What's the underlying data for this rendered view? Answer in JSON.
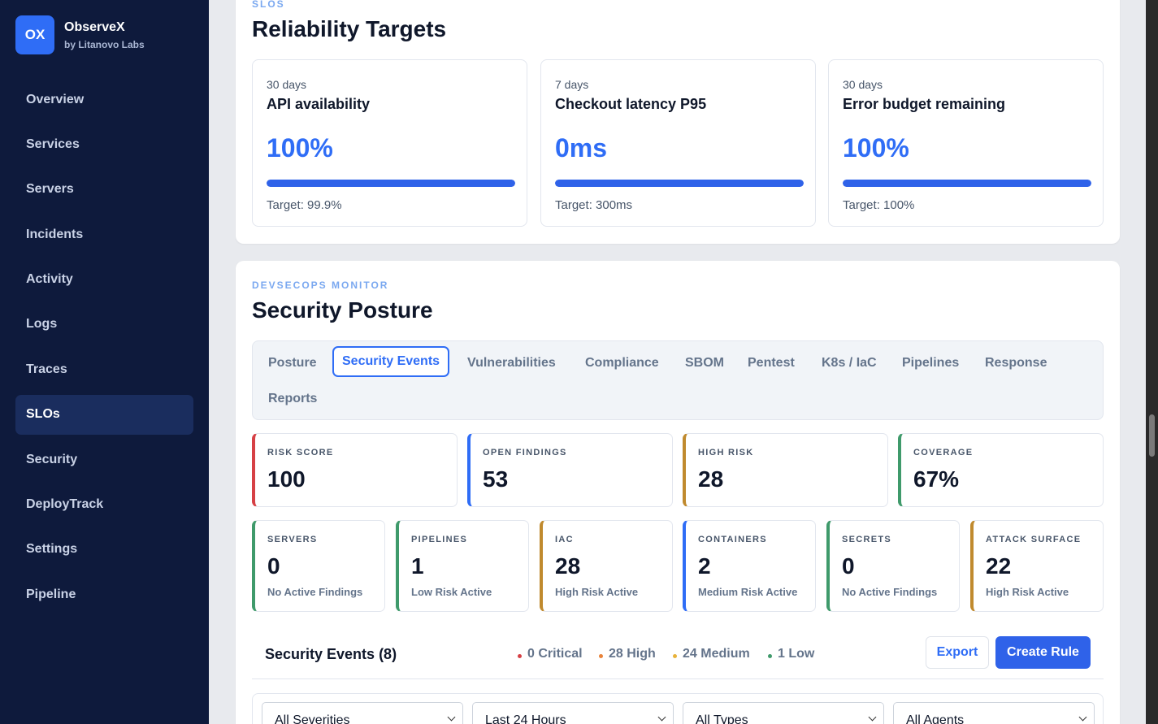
{
  "brand": {
    "logo": "OX",
    "name": "ObserveX",
    "sub": "by Litanovo Labs"
  },
  "sidebar": {
    "items": [
      {
        "label": "Overview"
      },
      {
        "label": "Services"
      },
      {
        "label": "Servers"
      },
      {
        "label": "Incidents"
      },
      {
        "label": "Activity"
      },
      {
        "label": "Logs"
      },
      {
        "label": "Traces"
      },
      {
        "label": "SLOs",
        "active": true
      },
      {
        "label": "Security"
      },
      {
        "label": "DeployTrack"
      },
      {
        "label": "Settings"
      },
      {
        "label": "Pipeline"
      }
    ]
  },
  "slos": {
    "eyebrow": "SLOS",
    "title": "Reliability Targets",
    "cards": [
      {
        "period": "30 days",
        "name": "API availability",
        "value": "100%",
        "progress": 1.0,
        "target": "Target: 99.9%"
      },
      {
        "period": "7 days",
        "name": "Checkout latency P95",
        "value": "0ms",
        "progress": 1.0,
        "target": "Target: 300ms"
      },
      {
        "period": "30 days",
        "name": "Error budget remaining",
        "value": "100%",
        "progress": 1.0,
        "target": "Target: 100%"
      }
    ]
  },
  "security": {
    "eyebrow": "DEVSECOPS MONITOR",
    "title": "Security Posture",
    "tabs": [
      {
        "label": "Posture"
      },
      {
        "label": "Security Events",
        "active": true
      },
      {
        "label": "Vulnerabilities"
      },
      {
        "label": "Compliance"
      },
      {
        "label": "SBOM"
      },
      {
        "label": "Pentest"
      },
      {
        "label": "K8s / IaC"
      },
      {
        "label": "Pipelines"
      },
      {
        "label": "Response"
      },
      {
        "label": "Reports"
      }
    ],
    "metrics": [
      {
        "label": "RISK SCORE",
        "value": "100",
        "color": "#d64045"
      },
      {
        "label": "OPEN FINDINGS",
        "value": "53",
        "color": "#2f6df6"
      },
      {
        "label": "HIGH RISK",
        "value": "28",
        "color": "#c08a2e"
      },
      {
        "label": "COVERAGE",
        "value": "67%",
        "color": "#3f9a6b"
      }
    ],
    "categories": [
      {
        "label": "SERVERS",
        "value": "0",
        "sub": "No Active Findings",
        "color": "#3f9a6b"
      },
      {
        "label": "PIPELINES",
        "value": "1",
        "sub": "Low Risk Active",
        "color": "#3f9a6b"
      },
      {
        "label": "IAC",
        "value": "28",
        "sub": "High Risk Active",
        "color": "#c08a2e"
      },
      {
        "label": "CONTAINERS",
        "value": "2",
        "sub": "Medium Risk Active",
        "color": "#2f6df6"
      },
      {
        "label": "SECRETS",
        "value": "0",
        "sub": "No Active Findings",
        "color": "#3f9a6b"
      },
      {
        "label": "ATTACK SURFACE",
        "value": "22",
        "sub": "High Risk Active",
        "color": "#c08a2e"
      }
    ],
    "events": {
      "title": "Security Events (8)",
      "severities": [
        {
          "label": "0 Critical",
          "color": "#d64045"
        },
        {
          "label": "28 High",
          "color": "#e8833a"
        },
        {
          "label": "24 Medium",
          "color": "#e8b23a"
        },
        {
          "label": "1 Low",
          "color": "#3f9a6b"
        }
      ],
      "export_label": "Export",
      "create_label": "Create Rule"
    },
    "filters": [
      {
        "value": "All Severities"
      },
      {
        "value": "Last 24 Hours"
      },
      {
        "value": "All Types"
      },
      {
        "value": "All Agents"
      }
    ]
  }
}
